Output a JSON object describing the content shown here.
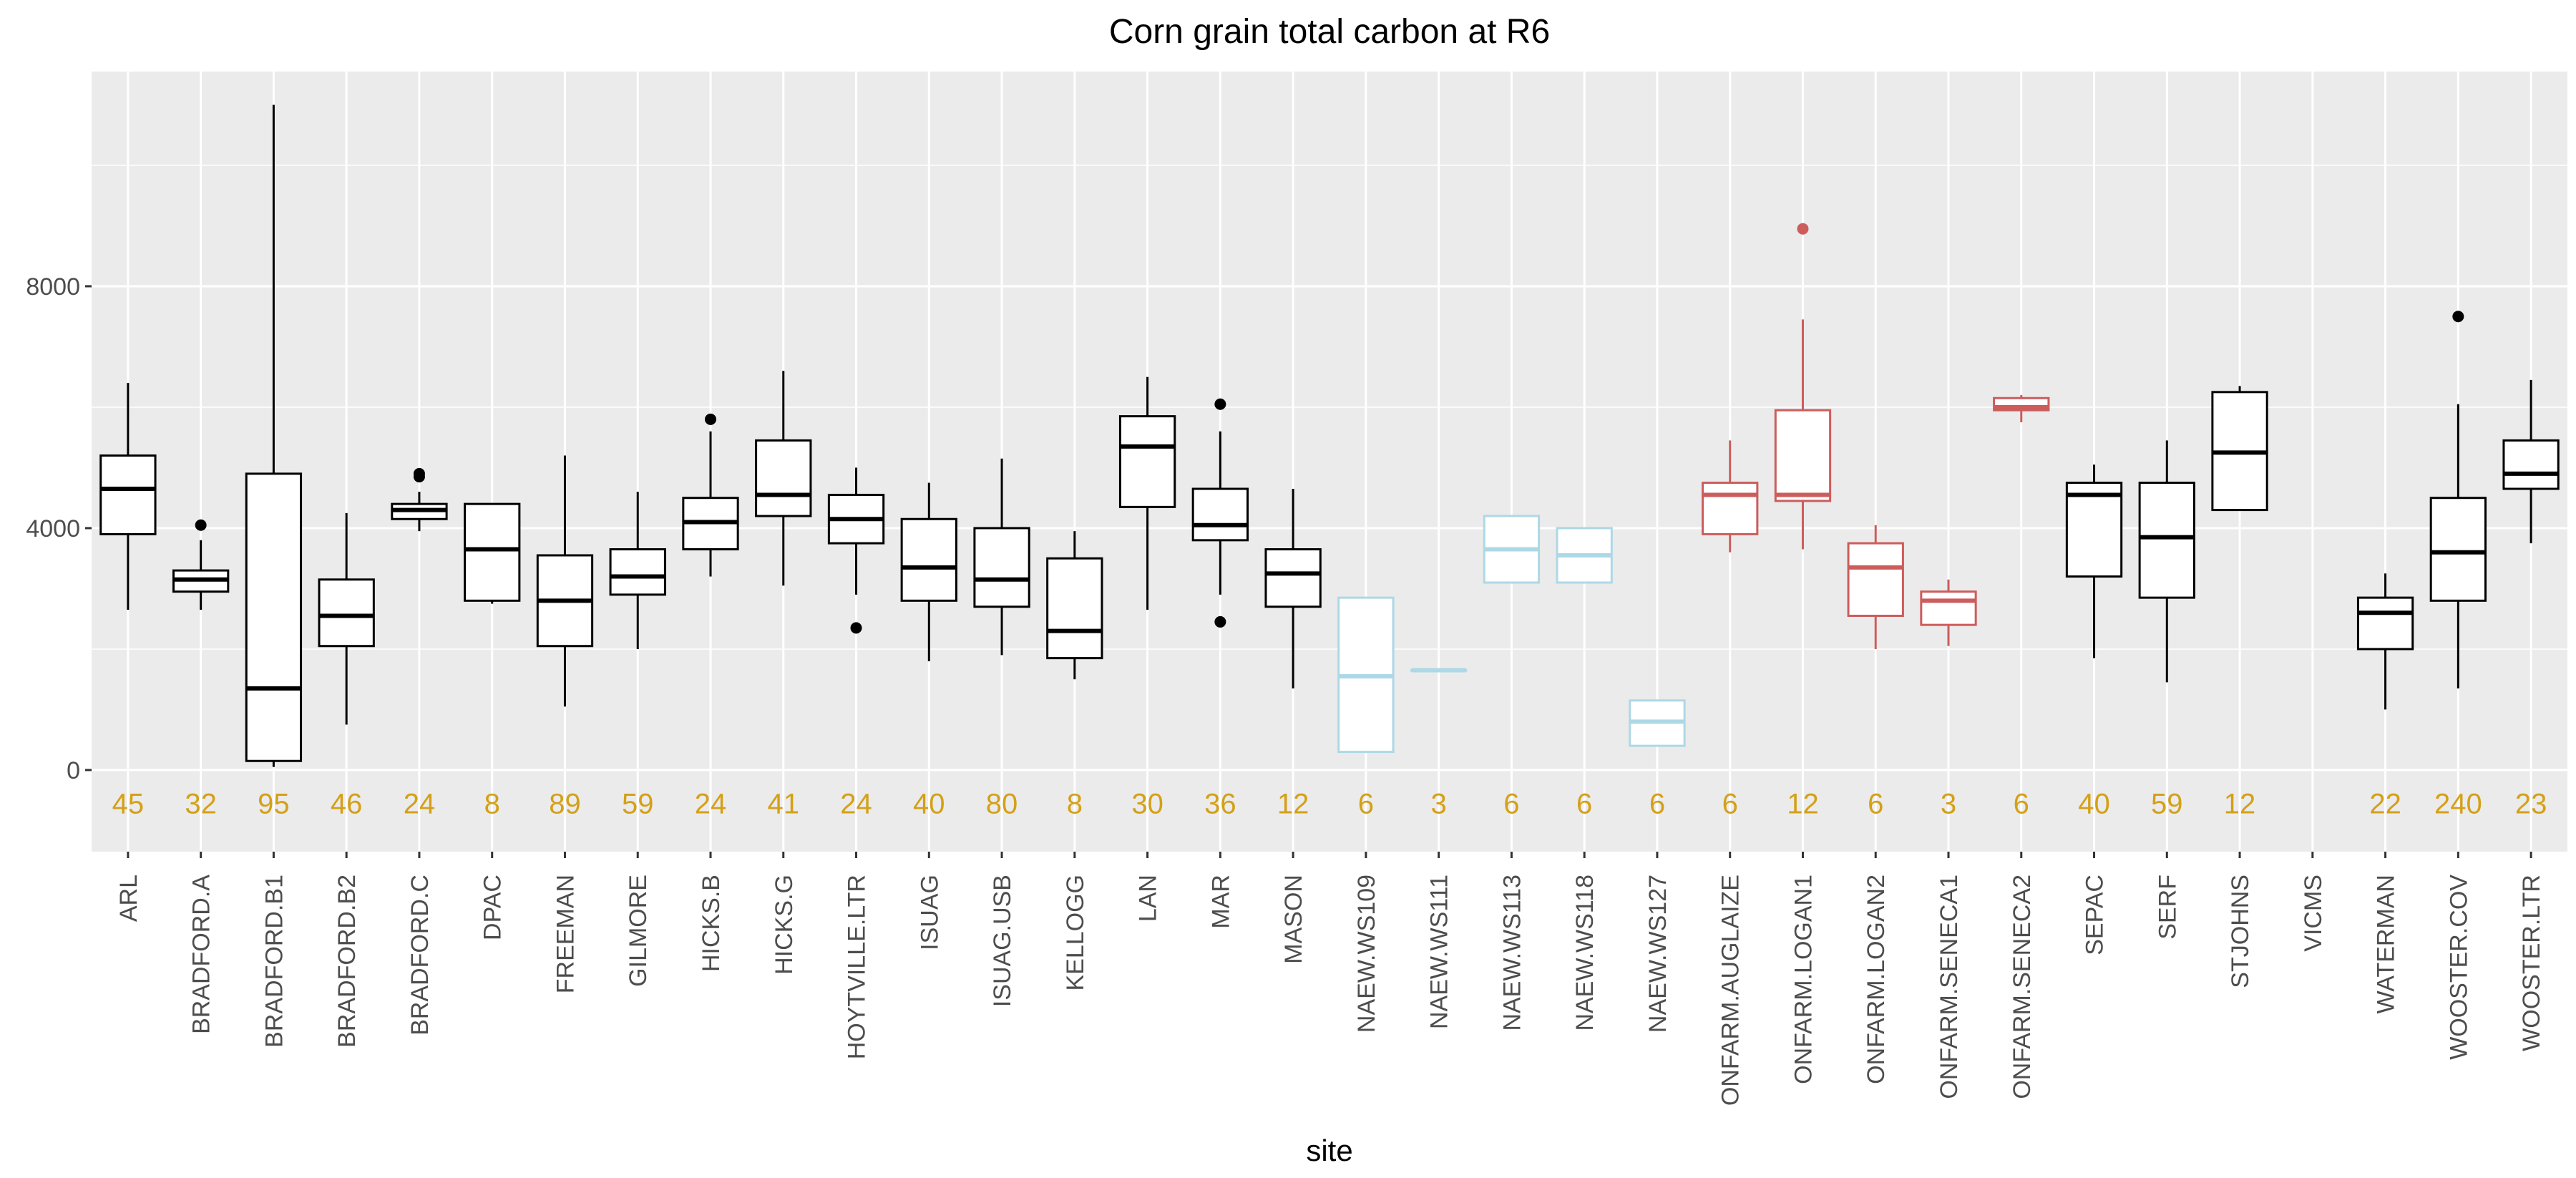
{
  "chart_data": {
    "type": "box",
    "title": "Corn grain total carbon at R6",
    "xlabel": "site",
    "ylabel": "",
    "ylim": [
      -1350,
      11550
    ],
    "yticks": [
      0,
      4000,
      8000
    ],
    "grid": true,
    "colors": {
      "default": "#000000",
      "naew": "#add8e6",
      "onfarm": "#cd5c5c",
      "count": "#d4a017",
      "panel": "#ebebeb",
      "grid_major": "#ffffff"
    },
    "sites": [
      {
        "name": "ARL",
        "group": "default",
        "n": "45",
        "min": 2650,
        "q1": 3900,
        "median": 4650,
        "q3": 5200,
        "max": 6400,
        "outliers": []
      },
      {
        "name": "BRADFORD.A",
        "group": "default",
        "n": "32",
        "min": 2650,
        "q1": 2950,
        "median": 3150,
        "q3": 3300,
        "max": 3800,
        "outliers": [
          4050
        ]
      },
      {
        "name": "BRADFORD.B1",
        "group": "default",
        "n": "95",
        "min": 50,
        "q1": 150,
        "median": 1350,
        "q3": 4900,
        "max": 11000,
        "outliers": []
      },
      {
        "name": "BRADFORD.B2",
        "group": "default",
        "n": "46",
        "min": 750,
        "q1": 2050,
        "median": 2550,
        "q3": 3150,
        "max": 4250,
        "outliers": []
      },
      {
        "name": "BRADFORD.C",
        "group": "default",
        "n": "24",
        "min": 3950,
        "q1": 4150,
        "median": 4300,
        "q3": 4400,
        "max": 4600,
        "outliers": [
          4850,
          4900
        ]
      },
      {
        "name": "DPAC",
        "group": "default",
        "n": "8",
        "min": 2750,
        "q1": 2800,
        "median": 3650,
        "q3": 4400,
        "max": 4400,
        "outliers": []
      },
      {
        "name": "FREEMAN",
        "group": "default",
        "n": "89",
        "min": 1050,
        "q1": 2050,
        "median": 2800,
        "q3": 3550,
        "max": 5200,
        "outliers": []
      },
      {
        "name": "GILMORE",
        "group": "default",
        "n": "59",
        "min": 2000,
        "q1": 2900,
        "median": 3200,
        "q3": 3650,
        "max": 4600,
        "outliers": []
      },
      {
        "name": "HICKS.B",
        "group": "default",
        "n": "24",
        "min": 3200,
        "q1": 3650,
        "median": 4100,
        "q3": 4500,
        "max": 5600,
        "outliers": [
          5800
        ]
      },
      {
        "name": "HICKS.G",
        "group": "default",
        "n": "41",
        "min": 3050,
        "q1": 4200,
        "median": 4550,
        "q3": 5450,
        "max": 6600,
        "outliers": []
      },
      {
        "name": "HOYTVILLE.LTR",
        "group": "default",
        "n": "24",
        "min": 2900,
        "q1": 3750,
        "median": 4150,
        "q3": 4550,
        "max": 5000,
        "outliers": [
          2350
        ]
      },
      {
        "name": "ISUAG",
        "group": "default",
        "n": "40",
        "min": 1800,
        "q1": 2800,
        "median": 3350,
        "q3": 4150,
        "max": 4750,
        "outliers": []
      },
      {
        "name": "ISUAG.USB",
        "group": "default",
        "n": "80",
        "min": 1900,
        "q1": 2700,
        "median": 3150,
        "q3": 4000,
        "max": 5150,
        "outliers": []
      },
      {
        "name": "KELLOGG",
        "group": "default",
        "n": "8",
        "min": 1500,
        "q1": 1850,
        "median": 2300,
        "q3": 3500,
        "max": 3950,
        "outliers": []
      },
      {
        "name": "LAN",
        "group": "default",
        "n": "30",
        "min": 2650,
        "q1": 4350,
        "median": 5350,
        "q3": 5850,
        "max": 6500,
        "outliers": []
      },
      {
        "name": "MAR",
        "group": "default",
        "n": "36",
        "min": 2900,
        "q1": 3800,
        "median": 4050,
        "q3": 4650,
        "max": 5600,
        "outliers": [
          6050,
          2450
        ]
      },
      {
        "name": "MASON",
        "group": "default",
        "n": "12",
        "min": 1350,
        "q1": 2700,
        "median": 3250,
        "q3": 3650,
        "max": 4650,
        "outliers": []
      },
      {
        "name": "NAEW.WS109",
        "group": "naew",
        "n": "6",
        "min": 300,
        "q1": 300,
        "median": 1550,
        "q3": 2850,
        "max": 2850,
        "outliers": []
      },
      {
        "name": "NAEW.WS111",
        "group": "naew",
        "n": "3",
        "min": 1650,
        "q1": 1650,
        "median": 1650,
        "q3": 1650,
        "max": 1650,
        "outliers": []
      },
      {
        "name": "NAEW.WS113",
        "group": "naew",
        "n": "6",
        "min": 3100,
        "q1": 3100,
        "median": 3650,
        "q3": 4200,
        "max": 4200,
        "outliers": []
      },
      {
        "name": "NAEW.WS118",
        "group": "naew",
        "n": "6",
        "min": 3100,
        "q1": 3100,
        "median": 3550,
        "q3": 4000,
        "max": 4000,
        "outliers": []
      },
      {
        "name": "NAEW.WS127",
        "group": "naew",
        "n": "6",
        "min": 400,
        "q1": 400,
        "median": 800,
        "q3": 1150,
        "max": 1150,
        "outliers": []
      },
      {
        "name": "ONFARM.AUGLAIZE",
        "group": "onfarm",
        "n": "6",
        "min": 3600,
        "q1": 3900,
        "median": 4550,
        "q3": 4750,
        "max": 5450,
        "outliers": []
      },
      {
        "name": "ONFARM.LOGAN1",
        "group": "onfarm",
        "n": "12",
        "min": 3650,
        "q1": 4450,
        "median": 4550,
        "q3": 5950,
        "max": 7450,
        "outliers": [
          8950
        ]
      },
      {
        "name": "ONFARM.LOGAN2",
        "group": "onfarm",
        "n": "6",
        "min": 2000,
        "q1": 2550,
        "median": 3350,
        "q3": 3750,
        "max": 4050,
        "outliers": []
      },
      {
        "name": "ONFARM.SENECA1",
        "group": "onfarm",
        "n": "3",
        "min": 2050,
        "q1": 2400,
        "median": 2800,
        "q3": 2950,
        "max": 3150,
        "outliers": []
      },
      {
        "name": "ONFARM.SENECA2",
        "group": "onfarm",
        "n": "6",
        "min": 5750,
        "q1": 5950,
        "median": 6000,
        "q3": 6150,
        "max": 6200,
        "outliers": []
      },
      {
        "name": "SEPAC",
        "group": "default",
        "n": "40",
        "min": 1850,
        "q1": 3200,
        "median": 4550,
        "q3": 4750,
        "max": 5050,
        "outliers": []
      },
      {
        "name": "SERF",
        "group": "default",
        "n": "59",
        "min": 1450,
        "q1": 2850,
        "median": 3850,
        "q3": 4750,
        "max": 5450,
        "outliers": []
      },
      {
        "name": "STJOHNS",
        "group": "default",
        "n": "12",
        "min": 4300,
        "q1": 4300,
        "median": 5250,
        "q3": 6250,
        "max": 6350,
        "outliers": []
      },
      {
        "name": "VICMS",
        "group": "default",
        "n": "",
        "min": null,
        "q1": null,
        "median": null,
        "q3": null,
        "max": null,
        "outliers": []
      },
      {
        "name": "WATERMAN",
        "group": "default",
        "n": "22",
        "min": 1000,
        "q1": 2000,
        "median": 2600,
        "q3": 2850,
        "max": 3250,
        "outliers": []
      },
      {
        "name": "WOOSTER.COV",
        "group": "default",
        "n": "240",
        "min": 1350,
        "q1": 2800,
        "median": 3600,
        "q3": 4500,
        "max": 6050,
        "outliers": [
          7500
        ]
      },
      {
        "name": "WOOSTER.LTR",
        "group": "default",
        "n": "23",
        "min": 3750,
        "q1": 4650,
        "median": 4900,
        "q3": 5450,
        "max": 6450,
        "outliers": []
      }
    ]
  }
}
